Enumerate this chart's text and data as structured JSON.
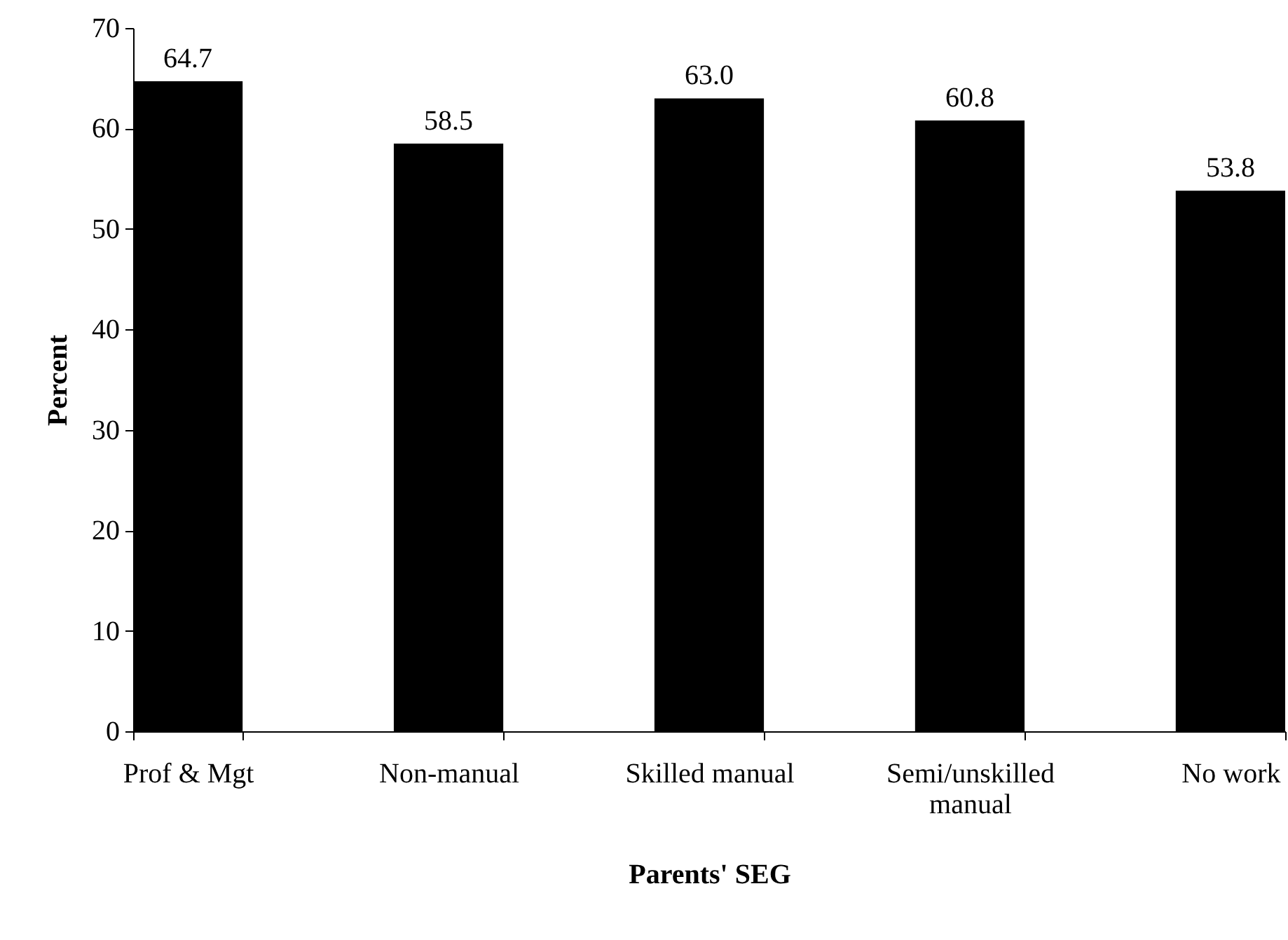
{
  "chart_data": {
    "type": "bar",
    "xlabel": "Parents' SEG",
    "ylabel": "Percent",
    "categories": [
      "Prof & Mgt",
      "Non-manual",
      "Skilled manual",
      "Semi/unskilled manual",
      "No work"
    ],
    "values": [
      64.7,
      58.5,
      63.0,
      60.8,
      53.8
    ],
    "value_labels": [
      "64.7",
      "58.5",
      "63.0",
      "60.8",
      "53.8"
    ],
    "color": "#000000",
    "ylim": [
      0,
      70
    ],
    "yticks": [
      0,
      10,
      20,
      30,
      40,
      50,
      60,
      70
    ],
    "grid": false
  }
}
